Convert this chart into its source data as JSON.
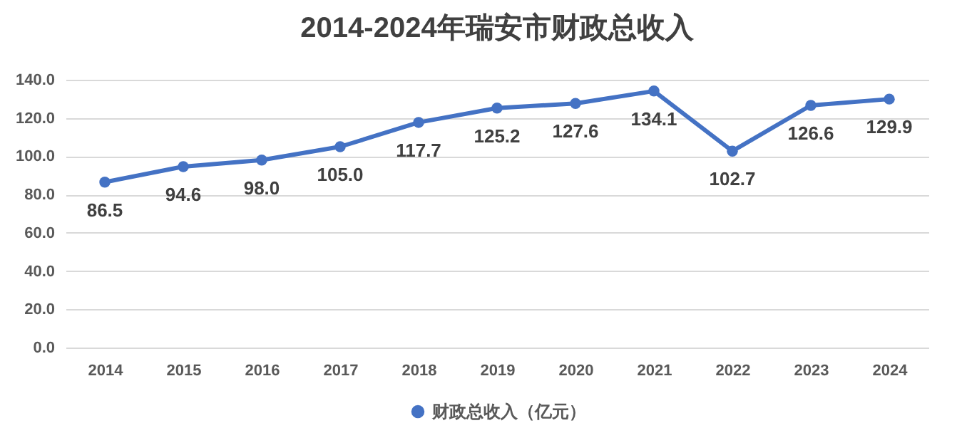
{
  "chart_data": {
    "type": "line",
    "title": "2014-2024年瑞安市财政总收入",
    "categories": [
      "2014",
      "2015",
      "2016",
      "2017",
      "2018",
      "2019",
      "2020",
      "2021",
      "2022",
      "2023",
      "2024"
    ],
    "series": [
      {
        "name": "财政总收入（亿元）",
        "color": "#4472c4",
        "values": [
          86.5,
          94.6,
          98.0,
          105.0,
          117.7,
          125.2,
          127.6,
          134.1,
          102.7,
          126.6,
          129.9
        ],
        "value_labels": [
          "86.5",
          "94.6",
          "98.0",
          "105.0",
          "117.7",
          "125.2",
          "127.6",
          "134.1",
          "102.7",
          "126.6",
          "129.9"
        ]
      }
    ],
    "ylim": [
      0,
      140
    ],
    "yticks": [
      {
        "value": 0,
        "label": "0.0"
      },
      {
        "value": 20,
        "label": "20.0"
      },
      {
        "value": 40,
        "label": "40.0"
      },
      {
        "value": 60,
        "label": "60.0"
      },
      {
        "value": 80,
        "label": "80.0"
      },
      {
        "value": 100,
        "label": "100.0"
      },
      {
        "value": 120,
        "label": "120.0"
      },
      {
        "value": 140,
        "label": "140.0"
      }
    ],
    "grid": "y",
    "legend": "bottom",
    "marker": "circle",
    "line_style": "solid"
  }
}
